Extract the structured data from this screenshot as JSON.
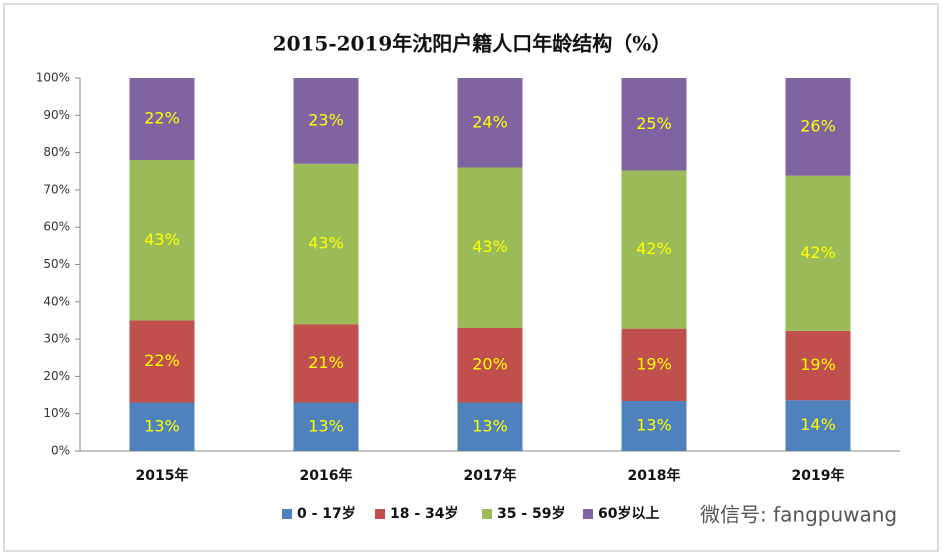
{
  "chart_data": {
    "type": "stacked_bar",
    "title": "2015-2019年沈阳户籍人口年龄结构（%）",
    "categories": [
      "2015年",
      "2016年",
      "2017年",
      "2018年",
      "2019年"
    ],
    "series": [
      {
        "name": "0 - 17岁",
        "color": "#4f81bd",
        "values": [
          13,
          13,
          13,
          13.4,
          13.6
        ],
        "value_labels": [
          "13%",
          "13%",
          "13%",
          "13%",
          "14%"
        ]
      },
      {
        "name": "18 - 34岁",
        "color": "#c0504d",
        "values": [
          22,
          21,
          20,
          19.4,
          18.6
        ],
        "value_labels": [
          "22%",
          "21%",
          "20%",
          "19%",
          "19%"
        ]
      },
      {
        "name": "35 - 59岁",
        "color": "#9bbb59",
        "values": [
          43,
          43,
          43,
          42.4,
          41.6
        ],
        "value_labels": [
          "43%",
          "43%",
          "43%",
          "42%",
          "42%"
        ]
      },
      {
        "name": "60岁以上",
        "color": "#8064a2",
        "values": [
          22,
          23,
          24,
          24.8,
          26.2
        ],
        "value_labels": [
          "22%",
          "23%",
          "24%",
          "25%",
          "26%"
        ]
      }
    ],
    "ylim": [
      0,
      100
    ],
    "yticks": [
      {
        "value": 0,
        "label": "0%"
      },
      {
        "value": 10,
        "label": "10%"
      },
      {
        "value": 20,
        "label": "20%"
      },
      {
        "value": 30,
        "label": "30%"
      },
      {
        "value": 40,
        "label": "40%"
      },
      {
        "value": 50,
        "label": "50%"
      },
      {
        "value": 60,
        "label": "60%"
      },
      {
        "value": 70,
        "label": "70%"
      },
      {
        "value": 80,
        "label": "80%"
      },
      {
        "value": 90,
        "label": "90%"
      },
      {
        "value": 100,
        "label": "100%"
      }
    ],
    "legend": "bottom",
    "annotation": "微信号: fangpuwang"
  }
}
